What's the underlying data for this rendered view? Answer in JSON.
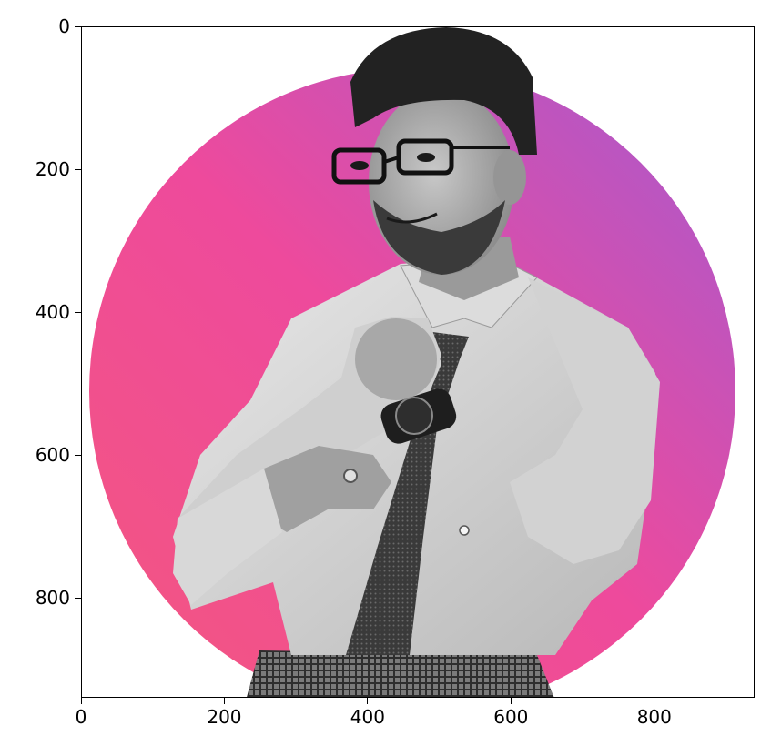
{
  "image": {
    "subject": "grayscale-portrait-on-gradient-circle",
    "gradient_colors": [
      "#f4577e",
      "#ee4a9c",
      "#a55ad0"
    ],
    "icon_names": [
      "person-portrait",
      "wristwatch",
      "necktie",
      "eyeglasses",
      "keyboard"
    ]
  },
  "axes": {
    "x_ticks": [
      "0",
      "200",
      "400",
      "600",
      "800"
    ],
    "y_ticks": [
      "0",
      "200",
      "400",
      "600",
      "800"
    ],
    "x_range": [
      0,
      940
    ],
    "y_range": [
      940,
      0
    ]
  }
}
